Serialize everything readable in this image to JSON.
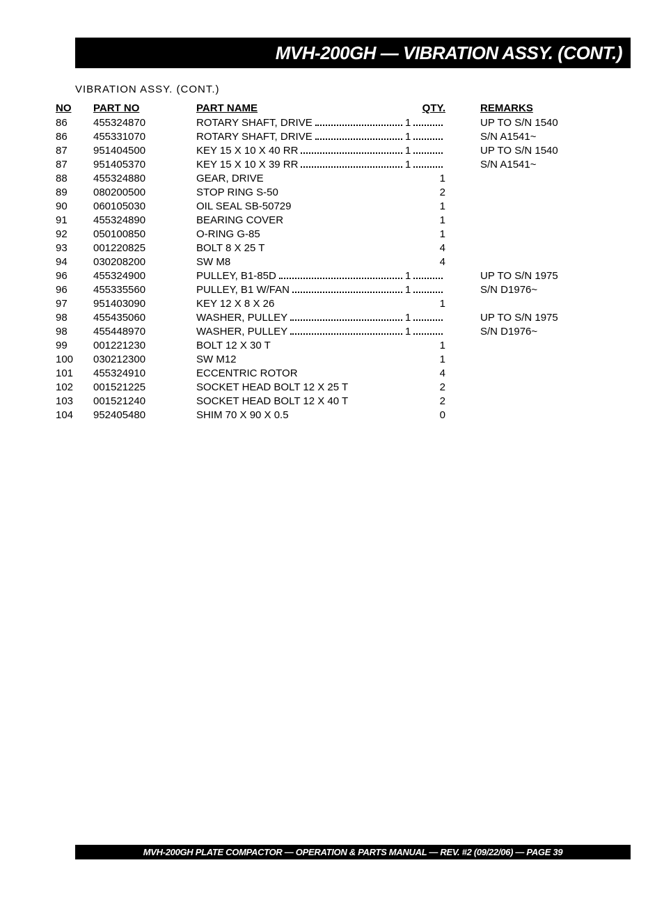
{
  "header": {
    "title": "MVH-200GH — VIBRATION ASSY. (CONT.)"
  },
  "section_label": "VIBRATION  ASSY. (CONT.)",
  "columns": {
    "no": "NO",
    "partno": "PART NO",
    "partname": "PART NAME",
    "qty": "QTY.",
    "remarks": "REMARKS"
  },
  "rows": [
    {
      "no": "86",
      "partno": "455324870",
      "partname": "ROTARY SHAFT, DRIVE",
      "qty": "1",
      "remarks": "UP TO S/N 1540",
      "dotted": true
    },
    {
      "no": "86",
      "partno": "455331070",
      "partname": "ROTARY SHAFT, DRIVE",
      "qty": "1",
      "remarks": "S/N A1541~",
      "dotted": true
    },
    {
      "no": "87",
      "partno": "951404500",
      "partname": "KEY 15 X 10 X 40  RR",
      "qty": "1",
      "remarks": "UP TO S/N 1540",
      "dotted": true
    },
    {
      "no": "87",
      "partno": "951405370",
      "partname": "KEY 15 X 10 X 39  RR",
      "qty": "1",
      "remarks": "S/N A1541~",
      "dotted": true
    },
    {
      "no": "88",
      "partno": "455324880",
      "partname": "GEAR, DRIVE",
      "qty": "1",
      "remarks": "",
      "dotted": false
    },
    {
      "no": "89",
      "partno": "080200500",
      "partname": "STOP RING S-50",
      "qty": "2",
      "remarks": "",
      "dotted": false
    },
    {
      "no": "90",
      "partno": "060105030",
      "partname": "OIL SEAL SB-50729",
      "qty": "1",
      "remarks": "",
      "dotted": false
    },
    {
      "no": "91",
      "partno": "455324890",
      "partname": "BEARING COVER",
      "qty": "1",
      "remarks": "",
      "dotted": false
    },
    {
      "no": "92",
      "partno": "050100850",
      "partname": "O-RING G-85",
      "qty": "1",
      "remarks": "",
      "dotted": false
    },
    {
      "no": "93",
      "partno": "001220825",
      "partname": "BOLT 8 X 25 T",
      "qty": "4",
      "remarks": "",
      "dotted": false
    },
    {
      "no": "94",
      "partno": "030208200",
      "partname": "SW M8",
      "qty": "4",
      "remarks": "",
      "dotted": false
    },
    {
      "no": "96",
      "partno": "455324900",
      "partname": "PULLEY, B1-85D",
      "qty": "1",
      "remarks": "UP TO S/N 1975",
      "dotted": true
    },
    {
      "no": "96",
      "partno": "455335560",
      "partname": "PULLEY, B1 W/FAN",
      "qty": "1",
      "remarks": "S/N D1976~",
      "dotted": true
    },
    {
      "no": "97",
      "partno": "951403090",
      "partname": "KEY 12 X 8 X 26",
      "qty": "1",
      "remarks": "",
      "dotted": false
    },
    {
      "no": "98",
      "partno": "455435060",
      "partname": "WASHER, PULLEY",
      "qty": "1",
      "remarks": "UP TO S/N 1975",
      "dotted": true
    },
    {
      "no": "98",
      "partno": "455448970",
      "partname": "WASHER, PULLEY",
      "qty": "1",
      "remarks": "S/N D1976~",
      "dotted": true
    },
    {
      "no": "99",
      "partno": "001221230",
      "partname": "BOLT 12 X 30 T",
      "qty": "1",
      "remarks": "",
      "dotted": false
    },
    {
      "no": "100",
      "partno": "030212300",
      "partname": "SW M12",
      "qty": "1",
      "remarks": "",
      "dotted": false
    },
    {
      "no": "101",
      "partno": "455324910",
      "partname": "ECCENTRIC ROTOR",
      "qty": "4",
      "remarks": "",
      "dotted": false
    },
    {
      "no": "102",
      "partno": "001521225",
      "partname": "SOCKET HEAD BOLT 12 X 25 T",
      "qty": "2",
      "remarks": "",
      "dotted": false
    },
    {
      "no": "103",
      "partno": "001521240",
      "partname": "SOCKET HEAD BOLT 12 X 40 T",
      "qty": "2",
      "remarks": "",
      "dotted": false
    },
    {
      "no": "104",
      "partno": "952405480",
      "partname": "SHIM 70 X 90 X 0.5",
      "qty": "0",
      "remarks": "",
      "dotted": false
    }
  ],
  "footer": "MVH-200GH PLATE COMPACTOR — OPERATION & PARTS  MANUAL — REV. #2  (09/22/06) — PAGE 39"
}
